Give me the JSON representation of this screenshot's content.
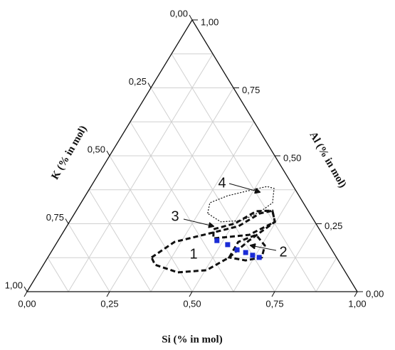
{
  "chart_data": {
    "type": "ternary",
    "axes": {
      "bottom": {
        "title": "Si (% in mol)",
        "ticks": [
          {
            "value": 0,
            "label": "0,00"
          },
          {
            "value": 0.25,
            "label": "0,25"
          },
          {
            "value": 0.5,
            "label": "0,50"
          },
          {
            "value": 0.75,
            "label": "0,75"
          },
          {
            "value": 1,
            "label": "1,00"
          }
        ]
      },
      "right": {
        "title": "Al (% in mol)",
        "ticks": [
          {
            "value": 0,
            "label": "0,00"
          },
          {
            "value": 0.25,
            "label": "0,25"
          },
          {
            "value": 0.5,
            "label": "0,50"
          },
          {
            "value": 0.75,
            "label": "0,75"
          },
          {
            "value": 1,
            "label": "1,00"
          }
        ]
      },
      "left": {
        "title": "K (% in mol)",
        "ticks": [
          {
            "value": 0,
            "label": "0,00"
          },
          {
            "value": 0.25,
            "label": "0,25"
          },
          {
            "value": 0.5,
            "label": "0,50"
          },
          {
            "value": 0.75,
            "label": "0,75"
          },
          {
            "value": 1,
            "label": "1,00"
          }
        ]
      }
    },
    "grid_minor": [
      0.125,
      0.375,
      0.625,
      0.875
    ],
    "grid": true,
    "points": {
      "color": "#1a2bd6",
      "si": [
        0.481,
        0.521,
        0.559,
        0.59,
        0.616,
        0.64
      ],
      "al": [
        0.188,
        0.173,
        0.154,
        0.144,
        0.134,
        0.126
      ]
    },
    "regions": [
      {
        "label": "1",
        "style": "thick",
        "si": [
          0.314,
          0.355,
          0.447,
          0.52,
          0.561,
          0.594,
          0.622,
          0.578,
          0.549,
          0.504,
          0.421,
          0.338
        ],
        "al": [
          0.126,
          0.183,
          0.215,
          0.241,
          0.288,
          0.298,
          0.257,
          0.188,
          0.126,
          0.079,
          0.071,
          0.099
        ]
      },
      {
        "label": "2",
        "style": "thick",
        "si": [
          0.549,
          0.548,
          0.589,
          0.635,
          0.648,
          0.604
        ],
        "al": [
          0.126,
          0.183,
          0.209,
          0.17,
          0.126,
          0.115
        ]
      },
      {
        "label": "3",
        "style": "thick",
        "si": [
          0.45,
          0.504,
          0.546,
          0.594,
          0.622,
          0.568,
          0.466
        ],
        "al": [
          0.23,
          0.251,
          0.296,
          0.298,
          0.257,
          0.209,
          0.196
        ]
      },
      {
        "label": "4",
        "style": "thin",
        "si": [
          0.403,
          0.39,
          0.431,
          0.486,
          0.533,
          0.558,
          0.58,
          0.558,
          0.52,
          0.458
        ],
        "al": [
          0.288,
          0.327,
          0.353,
          0.372,
          0.387,
          0.38,
          0.327,
          0.293,
          0.262,
          0.257
        ]
      }
    ]
  }
}
